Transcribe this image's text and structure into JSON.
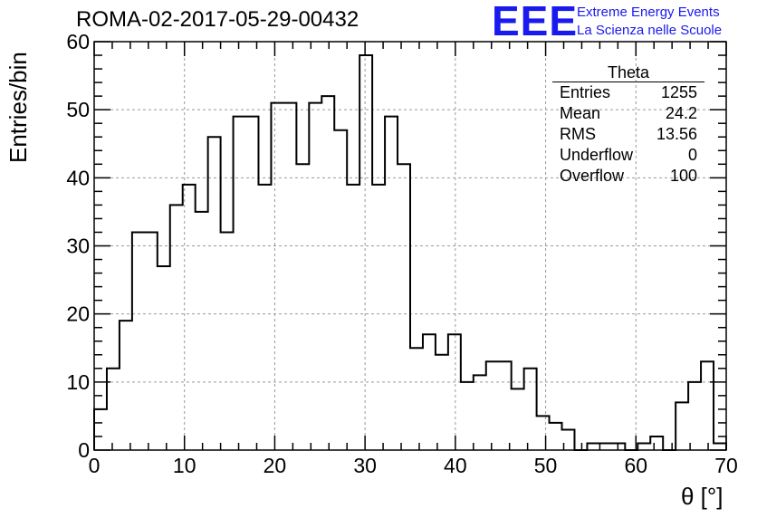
{
  "title": "ROMA-02-2017-05-29-00432",
  "logo": {
    "text": "EEE",
    "line1": "Extreme Energy Events",
    "line2": "La Scienza nelle Scuole",
    "color": "#1a1aee"
  },
  "stats": {
    "name": "Theta",
    "rows": [
      {
        "label": "Entries",
        "value": "1255"
      },
      {
        "label": "Mean",
        "value": "24.2"
      },
      {
        "label": "RMS",
        "value": "13.56"
      },
      {
        "label": "Underflow",
        "value": "0"
      },
      {
        "label": "Overflow",
        "value": "100"
      }
    ]
  },
  "chart_data": {
    "type": "bar",
    "histogram": true,
    "title": "ROMA-02-2017-05-29-00432",
    "xlabel": "θ [°]",
    "ylabel": "Entries/bin",
    "xlim": [
      0,
      70
    ],
    "ylim": [
      0,
      60
    ],
    "bin_width": 1.4,
    "xticks": [
      0,
      10,
      20,
      30,
      40,
      50,
      60,
      70
    ],
    "yticks": [
      0,
      10,
      20,
      30,
      40,
      50,
      60
    ],
    "grid": true,
    "legend": "top-right",
    "values": [
      6,
      12,
      19,
      32,
      32,
      27,
      36,
      39,
      35,
      46,
      32,
      49,
      49,
      39,
      51,
      51,
      42,
      51,
      52,
      47,
      39,
      58,
      39,
      49,
      42,
      15,
      17,
      14,
      17,
      10,
      11,
      13,
      13,
      9,
      12,
      5,
      4,
      3,
      0,
      1,
      1,
      1,
      0,
      1,
      2,
      0,
      7,
      10,
      13,
      1
    ]
  }
}
